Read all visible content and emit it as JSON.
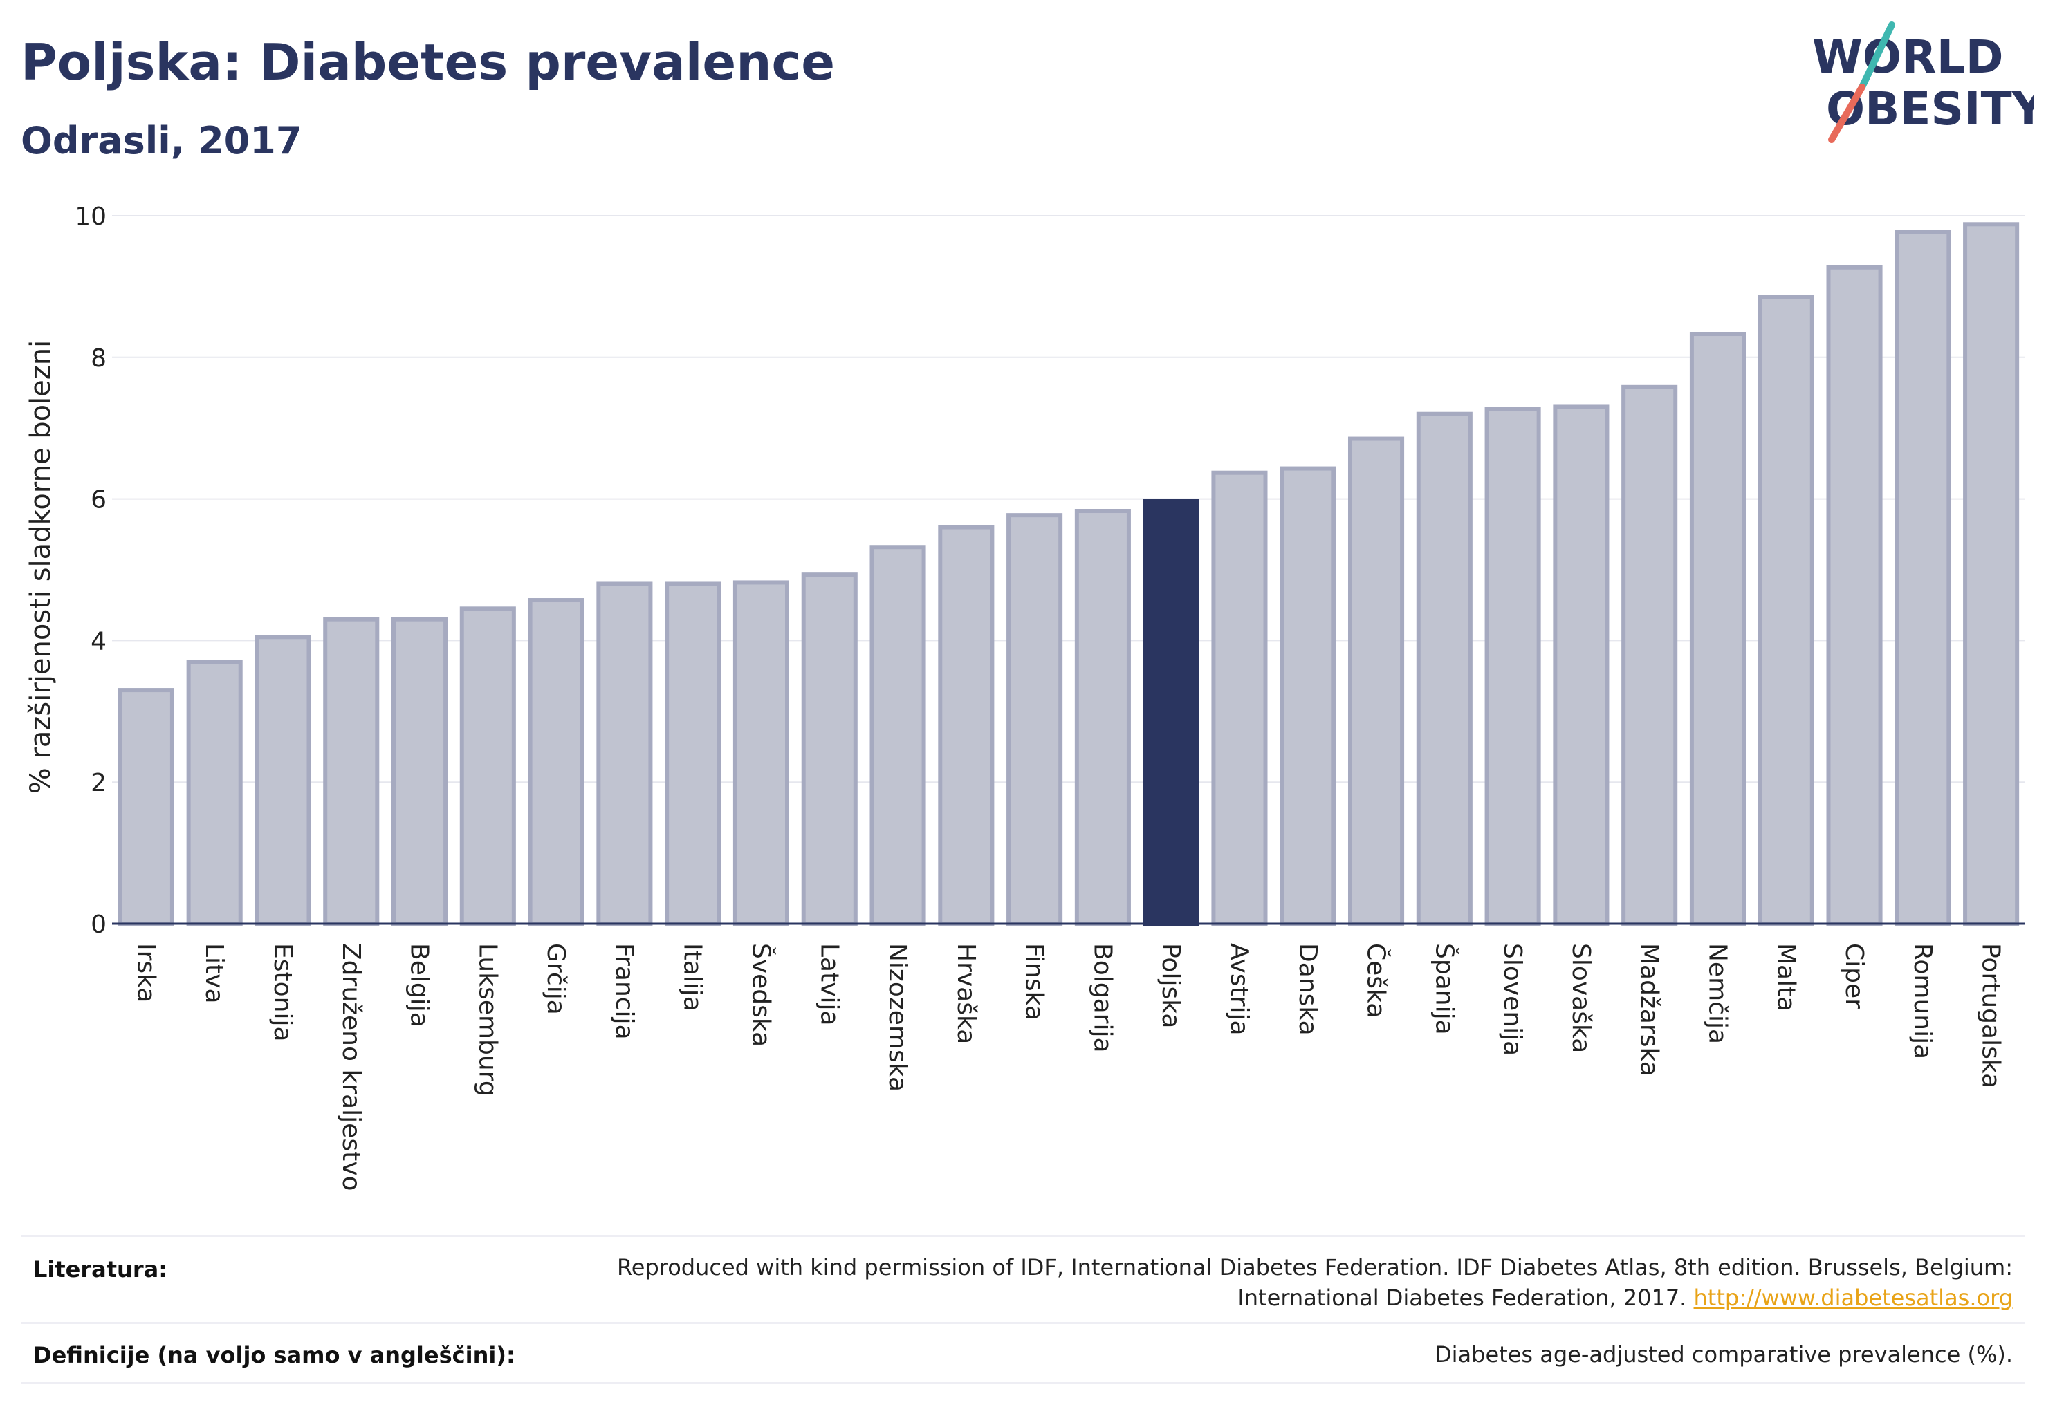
{
  "header": {
    "title": "Poljska: Diabetes prevalence",
    "subtitle": "Odrasli, 2017"
  },
  "logo": {
    "line1": "WORLD",
    "line2": "OBESITY",
    "icon": "slash-mark-icon",
    "colors": {
      "text": "#2a3560",
      "slash_top": "#3fb7b0",
      "slash_bottom": "#e86a5a"
    }
  },
  "chart_data": {
    "type": "bar",
    "title": "",
    "xlabel": "",
    "ylabel": "% razširjenosti sladkorne bolezni",
    "ylim": [
      0,
      10
    ],
    "yticks": [
      "0",
      "2",
      "4",
      "6",
      "8",
      "10"
    ],
    "grid": true,
    "highlight": "Poljska",
    "colors": {
      "bar": "#c0c3d0",
      "bar_edge": "#a6aac0",
      "highlight": "#2a3560"
    },
    "categories": [
      "Irska",
      "Litva",
      "Estonija",
      "Združeno kraljestvo",
      "Belgija",
      "Luksemburg",
      "Grčija",
      "Francija",
      "Italija",
      "Švedska",
      "Latvija",
      "Nizozemska",
      "Hrvaška",
      "Finska",
      "Bolgarija",
      "Poljska",
      "Avstrija",
      "Danska",
      "Češka",
      "Španija",
      "Slovenija",
      "Slovaška",
      "Madžarska",
      "Nemčija",
      "Malta",
      "Ciper",
      "Romunija",
      "Portugalska"
    ],
    "values": [
      3.3,
      3.7,
      4.05,
      4.3,
      4.3,
      4.45,
      4.57,
      4.8,
      4.8,
      4.82,
      4.93,
      5.32,
      5.6,
      5.77,
      5.83,
      5.97,
      6.37,
      6.43,
      6.85,
      7.2,
      7.27,
      7.3,
      7.58,
      8.33,
      8.85,
      9.27,
      9.77,
      9.88
    ]
  },
  "footer": {
    "references_label": "Literatura:",
    "references_text_1": "Reproduced with kind permission of IDF, International Diabetes Federation. IDF Diabetes Atlas, 8th edition. Brussels, Belgium:",
    "references_text_2": "International Diabetes Federation, 2017.",
    "references_link": "http://www.diabetesatlas.org",
    "definitions_label": "Definicije (na voljo samo v angleščini):",
    "definitions_text": "Diabetes age-adjusted comparative prevalence (%)."
  }
}
